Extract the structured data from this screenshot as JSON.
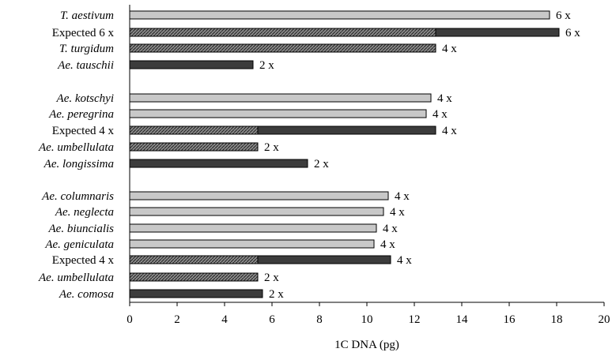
{
  "chart_data": {
    "type": "bar",
    "orientation": "horizontal",
    "xlabel": "1C DNA (pg)",
    "xlim": [
      0,
      20
    ],
    "xticks": [
      "0",
      "2",
      "4",
      "6",
      "8",
      "10",
      "12",
      "14",
      "16",
      "18",
      "20"
    ],
    "grid": false,
    "categories": [
      {
        "label": "T. aestivum",
        "italic": true,
        "value": 17.7,
        "style": "light",
        "annotation": "6 x"
      },
      {
        "label": "Expected 6 x",
        "italic": false,
        "value": 18.1,
        "style": "stacked",
        "stacked_segment": 12.9,
        "annotation": "6 x"
      },
      {
        "label": "T. turgidum",
        "italic": true,
        "value": 12.9,
        "style": "hatched",
        "annotation": "4 x"
      },
      {
        "label": "Ae. tauschii",
        "italic": true,
        "value": 5.2,
        "style": "dark",
        "annotation": "2 x"
      },
      {
        "label": "Ae. kotschyi",
        "italic": true,
        "value": 12.7,
        "style": "light",
        "annotation": "4 x"
      },
      {
        "label": "Ae. peregrina",
        "italic": true,
        "value": 12.5,
        "style": "light",
        "annotation": "4 x"
      },
      {
        "label": "Expected 4 x",
        "italic": false,
        "value": 12.9,
        "style": "stacked",
        "stacked_segment": 5.4,
        "annotation": "4 x"
      },
      {
        "label": "Ae. umbellulata",
        "italic": true,
        "value": 5.4,
        "style": "hatched",
        "annotation": "2 x"
      },
      {
        "label": "Ae. longissima",
        "italic": true,
        "value": 7.5,
        "style": "dark",
        "annotation": "2 x"
      },
      {
        "label": "Ae. columnaris",
        "italic": true,
        "value": 10.9,
        "style": "light",
        "annotation": "4 x"
      },
      {
        "label": "Ae. neglecta",
        "italic": true,
        "value": 10.7,
        "style": "light",
        "annotation": "4 x"
      },
      {
        "label": "Ae. biuncialis",
        "italic": true,
        "value": 10.4,
        "style": "light",
        "annotation": "4 x"
      },
      {
        "label": "Ae. geniculata",
        "italic": true,
        "value": 10.3,
        "style": "light",
        "annotation": "4 x"
      },
      {
        "label": "Expected 4 x",
        "italic": false,
        "value": 11.0,
        "style": "stacked",
        "stacked_segment": 5.4,
        "annotation": "4 x"
      },
      {
        "label": "Ae. umbellulata",
        "italic": true,
        "value": 5.4,
        "style": "hatched",
        "annotation": "2 x"
      },
      {
        "label": "Ae. comosa",
        "italic": true,
        "value": 5.6,
        "style": "dark",
        "annotation": "2 x"
      }
    ],
    "colors": {
      "light_fill": "#c8c8c8",
      "dark_fill": "#3c3c3c",
      "hatch_bg": "#8a8a8a",
      "outline": "#000000"
    }
  }
}
